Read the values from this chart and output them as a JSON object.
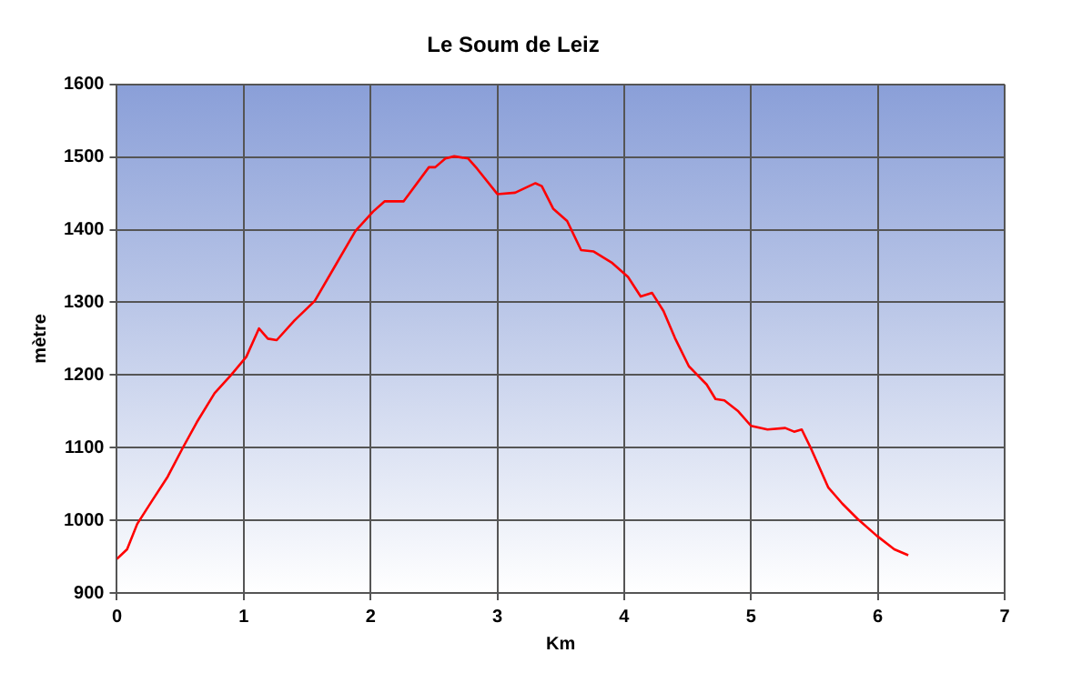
{
  "chart_data": {
    "type": "line",
    "title": "Le Soum de Leiz",
    "xlabel": "Km",
    "ylabel": "mètre",
    "x": [
      0,
      0.08,
      0.16,
      0.27,
      0.4,
      0.52,
      0.63,
      0.77,
      0.9,
      1.02,
      1.12,
      1.19,
      1.26,
      1.4,
      1.56,
      1.72,
      1.88,
      2.02,
      2.11,
      2.26,
      2.46,
      2.51,
      2.59,
      2.66,
      2.77,
      2.84,
      3.0,
      3.14,
      3.3,
      3.35,
      3.44,
      3.55,
      3.66,
      3.76,
      3.9,
      4.03,
      4.13,
      4.22,
      4.31,
      4.4,
      4.51,
      4.65,
      4.72,
      4.79,
      4.9,
      5.0,
      5.13,
      5.27,
      5.34,
      5.4,
      5.47,
      5.61,
      5.72,
      5.84,
      5.99,
      6.13,
      6.24
    ],
    "series": [
      {
        "color": "#ff0000",
        "values": [
          947,
          960,
          995,
          1025,
          1060,
          1100,
          1135,
          1175,
          1200,
          1225,
          1264,
          1250,
          1248,
          1275,
          1302,
          1350,
          1398,
          1425,
          1439,
          1439,
          1486,
          1486,
          1498,
          1501,
          1498,
          1484,
          1449,
          1451,
          1464,
          1460,
          1429,
          1412,
          1372,
          1370,
          1355,
          1335,
          1308,
          1313,
          1288,
          1251,
          1212,
          1187,
          1167,
          1165,
          1150,
          1130,
          1125,
          1127,
          1122,
          1125,
          1100,
          1045,
          1023,
          1002,
          979,
          960,
          952
        ]
      }
    ],
    "xlim": [
      0,
      7
    ],
    "xticks": [
      0,
      1,
      2,
      3,
      4,
      5,
      6,
      7
    ],
    "ylim": [
      900,
      1600
    ],
    "yticks": [
      900,
      1000,
      1100,
      1200,
      1300,
      1400,
      1500,
      1600
    ],
    "grid": true,
    "legend": false,
    "marker": "none",
    "line_style": "solid"
  }
}
